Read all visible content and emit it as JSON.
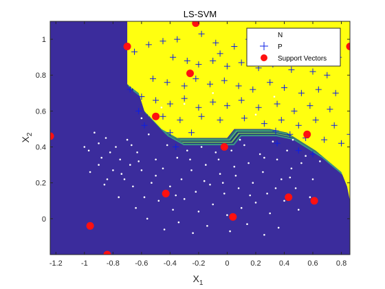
{
  "chart_data": {
    "type": "scatter",
    "title": "LS-SVM",
    "xlabel": {
      "base": "X",
      "sub": "1"
    },
    "ylabel": {
      "base": "X",
      "sub": "2"
    },
    "xlim": [
      -1.24,
      0.86
    ],
    "ylim": [
      -0.2,
      1.1
    ],
    "xticks": [
      -1.2,
      -1,
      -0.8,
      -0.6,
      -0.4,
      -0.2,
      0,
      0.2,
      0.4,
      0.6,
      0.8
    ],
    "xticklabels": [
      "-1.2",
      "-1",
      "-0.8",
      "-0.6",
      "-0.4",
      "-0.2",
      "0",
      "0.2",
      "0.4",
      "0.6",
      "0.8"
    ],
    "yticks": [
      0,
      0.2,
      0.4,
      0.6,
      0.8,
      1
    ],
    "yticklabels": [
      "0",
      "0.2",
      "0.4",
      "0.6",
      "0.8",
      "1"
    ],
    "colors": {
      "negative_region": "#3b2c9c",
      "positive_region": "#ffff10",
      "N": "#ffffff",
      "P": "#0a1ee6",
      "support_vectors": "#ff1010"
    },
    "legend": {
      "placement": "top-right",
      "entries": [
        "N",
        "P",
        "Support Vectors"
      ]
    },
    "decision_boundary": [
      [
        -0.7,
        1.1
      ],
      [
        -0.7,
        0.75
      ],
      [
        -0.62,
        0.7
      ],
      [
        -0.58,
        0.6
      ],
      [
        -0.52,
        0.55
      ],
      [
        -0.46,
        0.5
      ],
      [
        -0.35,
        0.45
      ],
      [
        -0.22,
        0.45
      ],
      [
        0.0,
        0.45
      ],
      [
        0.05,
        0.5
      ],
      [
        0.3,
        0.5
      ],
      [
        0.42,
        0.48
      ],
      [
        0.62,
        0.38
      ],
      [
        0.8,
        0.26
      ],
      [
        0.84,
        0.18
      ],
      [
        0.86,
        0.1
      ]
    ],
    "series": [
      {
        "name": "N",
        "marker": "dot",
        "points": [
          [
            -1.0,
            0.4
          ],
          [
            -0.97,
            0.38
          ],
          [
            -0.93,
            0.48
          ],
          [
            -0.9,
            0.42
          ],
          [
            -0.88,
            0.34
          ],
          [
            -0.85,
            0.45
          ],
          [
            -0.82,
            0.37
          ],
          [
            -0.8,
            0.27
          ],
          [
            -0.78,
            0.4
          ],
          [
            -0.75,
            0.33
          ],
          [
            -0.72,
            0.22
          ],
          [
            -0.7,
            0.44
          ],
          [
            -0.68,
            0.3
          ],
          [
            -0.66,
            0.18
          ],
          [
            -0.63,
            0.37
          ],
          [
            -0.6,
            0.27
          ],
          [
            -0.58,
            0.12
          ],
          [
            -0.55,
            0.47
          ],
          [
            -0.53,
            0.2
          ],
          [
            -0.5,
            0.33
          ],
          [
            -0.48,
            0.1
          ],
          [
            -0.45,
            0.28
          ],
          [
            -0.42,
            0.41
          ],
          [
            -0.4,
            0.18
          ],
          [
            -0.38,
            0.05
          ],
          [
            -0.35,
            0.34
          ],
          [
            -0.32,
            0.22
          ],
          [
            -0.3,
            0.11
          ],
          [
            -0.28,
            0.38
          ],
          [
            -0.25,
            0.27
          ],
          [
            -0.22,
            0.15
          ],
          [
            -0.2,
            0.04
          ],
          [
            -0.18,
            0.4
          ],
          [
            -0.15,
            0.3
          ],
          [
            -0.12,
            0.19
          ],
          [
            -0.1,
            0.08
          ],
          [
            -0.08,
            0.37
          ],
          [
            -0.05,
            0.25
          ],
          [
            -0.02,
            0.14
          ],
          [
            0.0,
            0.02
          ],
          [
            0.03,
            0.38
          ],
          [
            0.05,
            0.29
          ],
          [
            0.08,
            0.17
          ],
          [
            0.1,
            0.06
          ],
          [
            0.12,
            0.41
          ],
          [
            0.15,
            0.31
          ],
          [
            0.18,
            0.2
          ],
          [
            0.2,
            0.09
          ],
          [
            0.23,
            0.36
          ],
          [
            0.25,
            0.26
          ],
          [
            0.28,
            0.14
          ],
          [
            0.3,
            0.03
          ],
          [
            0.32,
            0.43
          ],
          [
            0.35,
            0.33
          ],
          [
            0.38,
            0.22
          ],
          [
            0.4,
            0.1
          ],
          [
            0.42,
            0.38
          ],
          [
            0.45,
            0.28
          ],
          [
            0.48,
            0.17
          ],
          [
            0.5,
            0.05
          ],
          [
            -0.96,
            0.26
          ],
          [
            -0.86,
            0.19
          ],
          [
            -0.76,
            0.12
          ],
          [
            -0.64,
            0.06
          ],
          [
            -0.56,
            0.0
          ],
          [
            -0.44,
            -0.06
          ],
          [
            -0.34,
            -0.02
          ],
          [
            -0.24,
            -0.08
          ],
          [
            -0.14,
            -0.04
          ],
          [
            0.02,
            -0.07
          ],
          [
            0.14,
            -0.03
          ],
          [
            0.26,
            -0.09
          ],
          [
            0.36,
            -0.05
          ],
          [
            0.46,
            0.44
          ],
          [
            0.55,
            0.35
          ],
          [
            0.6,
            0.22
          ],
          [
            0.65,
            0.32
          ],
          [
            0.58,
            0.12
          ],
          [
            -0.9,
            0.3
          ],
          [
            -0.74,
            0.25
          ],
          [
            -0.62,
            0.32
          ],
          [
            -0.5,
            0.24
          ],
          [
            -0.36,
            0.13
          ],
          [
            -0.26,
            0.33
          ],
          [
            -0.16,
            0.21
          ],
          [
            -0.06,
            0.33
          ],
          [
            0.06,
            0.24
          ],
          [
            0.16,
            0.13
          ],
          [
            0.26,
            0.34
          ],
          [
            0.34,
            0.17
          ],
          [
            0.44,
            0.23
          ],
          [
            0.52,
            0.31
          ],
          [
            -0.46,
            0.62
          ],
          [
            -0.6,
            0.56
          ],
          [
            0.2,
            0.58
          ],
          [
            0.33,
            0.68
          ],
          [
            -0.3,
            0.64
          ],
          [
            -0.1,
            0.7
          ],
          [
            -0.84,
            0.22
          ],
          [
            -0.67,
            0.41
          ],
          [
            0.09,
            0.44
          ],
          [
            -0.03,
            0.2
          ]
        ]
      },
      {
        "name": "P",
        "marker": "plus",
        "points": [
          [
            -0.55,
            0.97
          ],
          [
            -0.45,
            0.99
          ],
          [
            -0.35,
            1.0
          ],
          [
            -0.18,
            1.03
          ],
          [
            -0.08,
            0.98
          ],
          [
            0.05,
            0.96
          ],
          [
            0.15,
            1.0
          ],
          [
            0.28,
            0.97
          ],
          [
            0.4,
            0.95
          ],
          [
            0.55,
            0.92
          ],
          [
            0.68,
            0.96
          ],
          [
            -0.38,
            0.9
          ],
          [
            -0.28,
            0.88
          ],
          [
            -0.2,
            0.86
          ],
          [
            -0.1,
            0.88
          ],
          [
            0.0,
            0.85
          ],
          [
            0.1,
            0.87
          ],
          [
            0.22,
            0.84
          ],
          [
            0.32,
            0.86
          ],
          [
            0.45,
            0.83
          ],
          [
            0.6,
            0.82
          ],
          [
            0.7,
            0.8
          ],
          [
            -0.52,
            0.78
          ],
          [
            -0.42,
            0.76
          ],
          [
            -0.3,
            0.74
          ],
          [
            -0.22,
            0.78
          ],
          [
            -0.12,
            0.75
          ],
          [
            -0.02,
            0.77
          ],
          [
            0.08,
            0.74
          ],
          [
            0.18,
            0.72
          ],
          [
            0.3,
            0.76
          ],
          [
            0.4,
            0.73
          ],
          [
            0.52,
            0.7
          ],
          [
            0.64,
            0.72
          ],
          [
            0.76,
            0.7
          ],
          [
            -0.6,
            0.68
          ],
          [
            -0.5,
            0.66
          ],
          [
            -0.4,
            0.64
          ],
          [
            -0.3,
            0.67
          ],
          [
            -0.2,
            0.62
          ],
          [
            -0.1,
            0.65
          ],
          [
            0.0,
            0.63
          ],
          [
            0.1,
            0.66
          ],
          [
            0.22,
            0.62
          ],
          [
            0.35,
            0.64
          ],
          [
            0.47,
            0.6
          ],
          [
            0.58,
            0.63
          ],
          [
            0.72,
            0.61
          ],
          [
            -0.62,
            0.6
          ],
          [
            -0.45,
            0.57
          ],
          [
            -0.33,
            0.55
          ],
          [
            -0.18,
            0.57
          ],
          [
            -0.05,
            0.55
          ],
          [
            0.12,
            0.56
          ],
          [
            0.26,
            0.53
          ],
          [
            0.38,
            0.55
          ],
          [
            0.5,
            0.52
          ],
          [
            0.62,
            0.55
          ],
          [
            0.75,
            0.52
          ],
          [
            -0.58,
            0.52
          ],
          [
            -0.4,
            0.48
          ],
          [
            -0.25,
            0.48
          ],
          [
            0.34,
            0.49
          ],
          [
            0.44,
            0.47
          ],
          [
            0.55,
            0.45
          ],
          [
            0.68,
            0.44
          ],
          [
            0.8,
            0.42
          ],
          [
            -0.36,
            0.4
          ],
          [
            0.35,
            0.42
          ],
          [
            0.6,
            0.36
          ],
          [
            0.5,
            0.38
          ],
          [
            -0.65,
            0.93
          ],
          [
            0.25,
            0.93
          ],
          [
            -0.05,
            0.92
          ],
          [
            0.78,
            0.9
          ],
          [
            0.86,
            0.47
          ],
          [
            -0.68,
            0.72
          ]
        ]
      },
      {
        "name": "Support Vectors",
        "marker": "circle",
        "points": [
          [
            -0.22,
            1.09
          ],
          [
            0.86,
            0.96
          ],
          [
            -0.7,
            0.96
          ],
          [
            -0.26,
            0.81
          ],
          [
            -0.5,
            0.57
          ],
          [
            0.56,
            0.47
          ],
          [
            -1.24,
            0.46
          ],
          [
            -0.02,
            0.4
          ],
          [
            -0.43,
            0.14
          ],
          [
            0.43,
            0.12
          ],
          [
            0.61,
            0.1
          ],
          [
            0.04,
            0.01
          ],
          [
            -0.96,
            -0.04
          ],
          [
            -0.84,
            -0.2
          ]
        ]
      }
    ]
  }
}
